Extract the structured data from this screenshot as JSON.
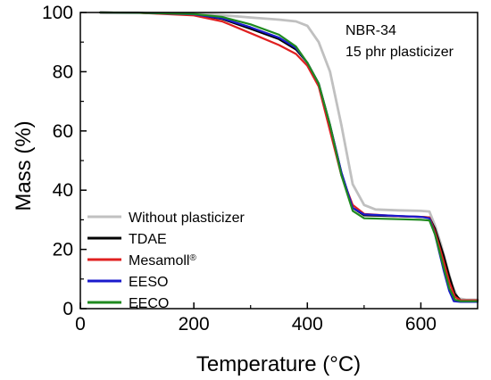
{
  "chart_data": {
    "type": "line",
    "xlabel": "Temperature (°C)",
    "ylabel": "Mass (%)",
    "xlim": [
      0,
      700
    ],
    "ylim": [
      0,
      100
    ],
    "xticks": [
      0,
      200,
      400,
      600
    ],
    "yticks": [
      0,
      20,
      40,
      60,
      80,
      100
    ],
    "grid": false,
    "legend_position": "bottom-left",
    "annotations": [
      "NBR-34",
      "15 phr plasticizer"
    ],
    "series": [
      {
        "name": "Without plasticizer",
        "color": "#c0c0c0",
        "points": [
          [
            35,
            100
          ],
          [
            100,
            99.9
          ],
          [
            200,
            99.6
          ],
          [
            250,
            99.1
          ],
          [
            300,
            98.3
          ],
          [
            350,
            97.6
          ],
          [
            380,
            97
          ],
          [
            400,
            95.5
          ],
          [
            420,
            90
          ],
          [
            440,
            80
          ],
          [
            460,
            62
          ],
          [
            480,
            42
          ],
          [
            500,
            35
          ],
          [
            520,
            33.5
          ],
          [
            560,
            33.2
          ],
          [
            600,
            33
          ],
          [
            615,
            32.8
          ],
          [
            625,
            28
          ],
          [
            635,
            22
          ],
          [
            645,
            15
          ],
          [
            655,
            8
          ],
          [
            665,
            3.5
          ],
          [
            680,
            3
          ],
          [
            700,
            3
          ]
        ]
      },
      {
        "name": "TDAE",
        "color": "#000000",
        "points": [
          [
            35,
            100
          ],
          [
            100,
            99.9
          ],
          [
            200,
            99.3
          ],
          [
            250,
            97.8
          ],
          [
            300,
            94.5
          ],
          [
            350,
            91
          ],
          [
            380,
            87.5
          ],
          [
            400,
            83
          ],
          [
            420,
            76
          ],
          [
            440,
            62
          ],
          [
            460,
            46
          ],
          [
            480,
            34
          ],
          [
            500,
            31.5
          ],
          [
            560,
            31.2
          ],
          [
            600,
            31
          ],
          [
            615,
            30.8
          ],
          [
            625,
            27
          ],
          [
            640,
            18
          ],
          [
            650,
            11
          ],
          [
            660,
            5
          ],
          [
            670,
            2.8
          ],
          [
            700,
            2.8
          ]
        ]
      },
      {
        "name": "Mesamoll",
        "sup": "®",
        "color": "#e02020",
        "points": [
          [
            35,
            100
          ],
          [
            100,
            99.9
          ],
          [
            200,
            99
          ],
          [
            250,
            97
          ],
          [
            300,
            93
          ],
          [
            350,
            89
          ],
          [
            380,
            86
          ],
          [
            400,
            82
          ],
          [
            420,
            75
          ],
          [
            440,
            60
          ],
          [
            460,
            45
          ],
          [
            480,
            35
          ],
          [
            500,
            32
          ],
          [
            560,
            31.2
          ],
          [
            600,
            31
          ],
          [
            615,
            30.8
          ],
          [
            625,
            26
          ],
          [
            640,
            16
          ],
          [
            650,
            9
          ],
          [
            660,
            4
          ],
          [
            670,
            2.8
          ],
          [
            700,
            2.8
          ]
        ]
      },
      {
        "name": "EESO",
        "color": "#1a1acc",
        "points": [
          [
            35,
            100
          ],
          [
            100,
            99.9
          ],
          [
            200,
            99.4
          ],
          [
            250,
            98
          ],
          [
            300,
            95
          ],
          [
            350,
            91.5
          ],
          [
            380,
            88
          ],
          [
            400,
            83
          ],
          [
            420,
            76
          ],
          [
            440,
            62
          ],
          [
            460,
            46
          ],
          [
            480,
            34
          ],
          [
            500,
            31.8
          ],
          [
            560,
            31.3
          ],
          [
            600,
            31
          ],
          [
            615,
            30.5
          ],
          [
            625,
            25
          ],
          [
            640,
            13
          ],
          [
            650,
            6
          ],
          [
            658,
            2.5
          ],
          [
            670,
            2.3
          ],
          [
            700,
            2.3
          ]
        ]
      },
      {
        "name": "EECO",
        "color": "#1f8a1f",
        "points": [
          [
            35,
            100
          ],
          [
            100,
            99.9
          ],
          [
            200,
            99.5
          ],
          [
            250,
            98.5
          ],
          [
            300,
            96
          ],
          [
            350,
            92.5
          ],
          [
            380,
            88.5
          ],
          [
            400,
            83
          ],
          [
            420,
            76
          ],
          [
            440,
            62
          ],
          [
            460,
            45
          ],
          [
            480,
            33
          ],
          [
            500,
            30.5
          ],
          [
            560,
            30.2
          ],
          [
            600,
            30
          ],
          [
            615,
            29.8
          ],
          [
            625,
            25
          ],
          [
            640,
            14
          ],
          [
            650,
            7
          ],
          [
            660,
            3
          ],
          [
            670,
            2.5
          ],
          [
            700,
            2.5
          ]
        ]
      }
    ]
  }
}
